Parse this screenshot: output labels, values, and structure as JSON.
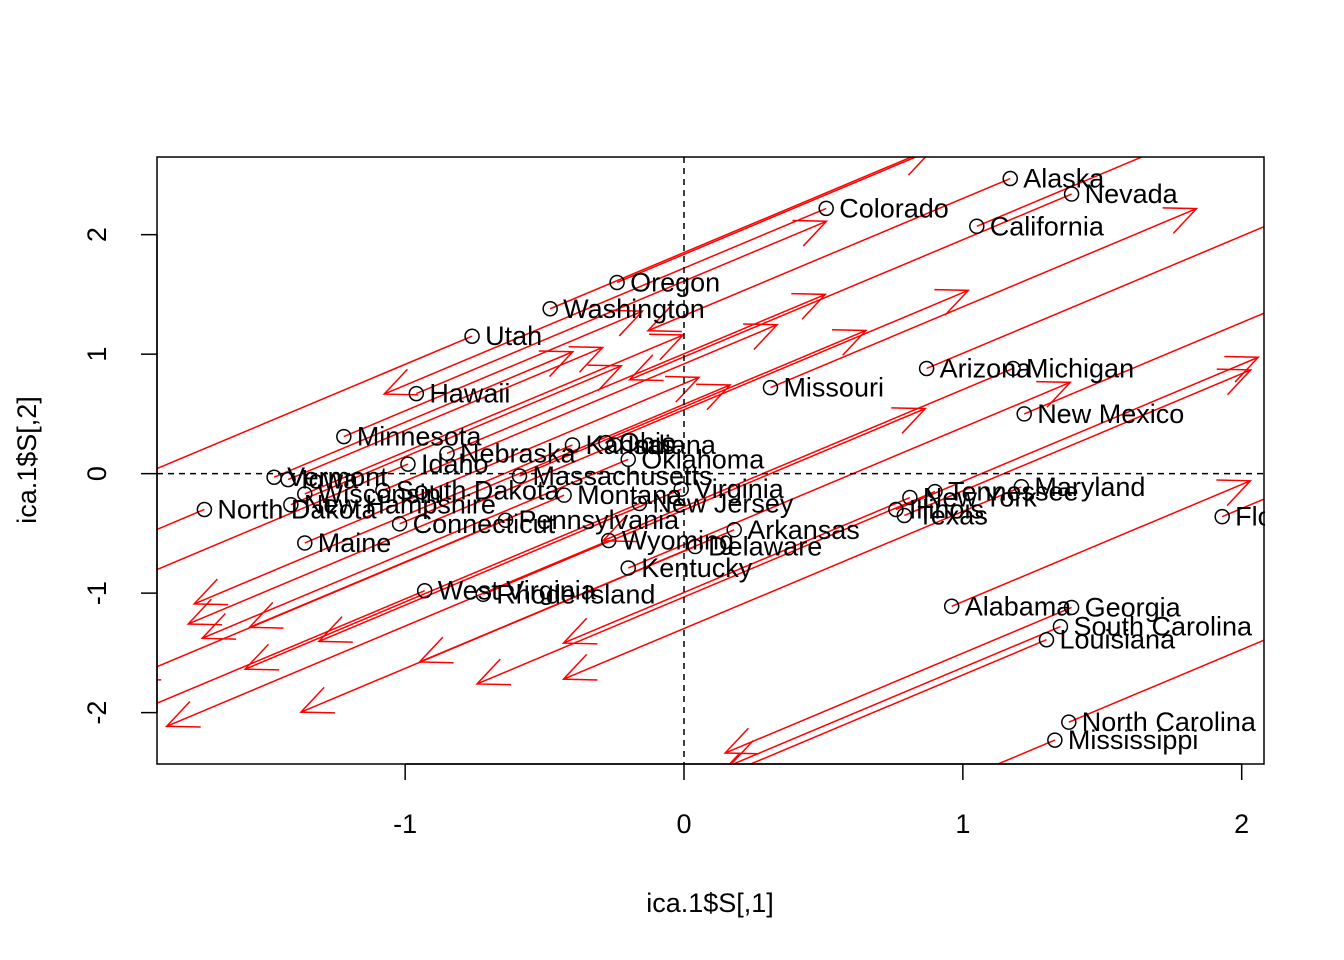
{
  "chart_data": {
    "type": "scatter",
    "title": "",
    "xlabel": "ica.1$S[,1]",
    "ylabel": "ica.1$S[,2]",
    "xlim": [
      -1.89,
      2.08
    ],
    "ylim": [
      -2.43,
      2.65
    ],
    "xticks": [
      -1,
      0,
      1,
      2
    ],
    "yticks": [
      -2,
      -1,
      0,
      1,
      2
    ],
    "reference_lines": {
      "x": 0,
      "y": 0,
      "style": "dashed"
    },
    "grid": false,
    "legend": "none",
    "point_color": "#000000",
    "arrow_color": "#ff0000",
    "points": [
      {
        "label": "Alabama",
        "x": 0.96,
        "y": -1.11
      },
      {
        "label": "Alaska",
        "x": 1.17,
        "y": 2.47
      },
      {
        "label": "Arizona",
        "x": 0.87,
        "y": 0.88
      },
      {
        "label": "Arkansas",
        "x": 0.18,
        "y": -0.47
      },
      {
        "label": "California",
        "x": 1.05,
        "y": 2.07
      },
      {
        "label": "Colorado",
        "x": 0.51,
        "y": 2.22
      },
      {
        "label": "Connecticut",
        "x": -1.02,
        "y": -0.42
      },
      {
        "label": "Delaware",
        "x": 0.04,
        "y": -0.61
      },
      {
        "label": "Florida",
        "x": 1.93,
        "y": -0.36
      },
      {
        "label": "Georgia",
        "x": 1.39,
        "y": -1.12
      },
      {
        "label": "Hawaii",
        "x": -0.96,
        "y": 0.67
      },
      {
        "label": "Idaho",
        "x": -0.99,
        "y": 0.08
      },
      {
        "label": "Illinois",
        "x": 0.76,
        "y": -0.3
      },
      {
        "label": "Indiana",
        "x": -0.25,
        "y": 0.24
      },
      {
        "label": "Iowa",
        "x": -1.42,
        "y": -0.05
      },
      {
        "label": "Kansas",
        "x": -0.4,
        "y": 0.24
      },
      {
        "label": "Kentucky",
        "x": -0.2,
        "y": -0.79
      },
      {
        "label": "Louisiana",
        "x": 1.3,
        "y": -1.39
      },
      {
        "label": "Maine",
        "x": -1.36,
        "y": -0.58
      },
      {
        "label": "Maryland",
        "x": 1.21,
        "y": -0.11
      },
      {
        "label": "Massachusetts",
        "x": -0.59,
        "y": -0.02
      },
      {
        "label": "Michigan",
        "x": 1.18,
        "y": 0.88
      },
      {
        "label": "Minnesota",
        "x": -1.22,
        "y": 0.31
      },
      {
        "label": "Mississippi",
        "x": 1.33,
        "y": -2.23
      },
      {
        "label": "Missouri",
        "x": 0.31,
        "y": 0.72
      },
      {
        "label": "Montana",
        "x": -0.43,
        "y": -0.18
      },
      {
        "label": "Nebraska",
        "x": -0.85,
        "y": 0.17
      },
      {
        "label": "Nevada",
        "x": 1.39,
        "y": 2.34
      },
      {
        "label": "New Hampshire",
        "x": -1.41,
        "y": -0.26
      },
      {
        "label": "New Jersey",
        "x": -0.16,
        "y": -0.25
      },
      {
        "label": "New Mexico",
        "x": 1.22,
        "y": 0.5
      },
      {
        "label": "New York",
        "x": 0.81,
        "y": -0.2
      },
      {
        "label": "North Carolina",
        "x": 1.38,
        "y": -2.08
      },
      {
        "label": "North Dakota",
        "x": -1.72,
        "y": -0.3
      },
      {
        "label": "Ohio",
        "x": -0.28,
        "y": 0.26
      },
      {
        "label": "Oklahoma",
        "x": -0.2,
        "y": 0.12
      },
      {
        "label": "Oregon",
        "x": -0.24,
        "y": 1.6
      },
      {
        "label": "Pennsylvania",
        "x": -0.64,
        "y": -0.39
      },
      {
        "label": "Rhode Island",
        "x": -0.72,
        "y": -1.01
      },
      {
        "label": "South Carolina",
        "x": 1.35,
        "y": -1.28
      },
      {
        "label": "South Dakota",
        "x": -1.08,
        "y": -0.14
      },
      {
        "label": "Tennessee",
        "x": 0.9,
        "y": -0.15
      },
      {
        "label": "Texas",
        "x": 0.79,
        "y": -0.35
      },
      {
        "label": "Utah",
        "x": -0.76,
        "y": 1.15
      },
      {
        "label": "Vermont",
        "x": -1.47,
        "y": -0.03
      },
      {
        "label": "Virginia",
        "x": -0.01,
        "y": -0.13
      },
      {
        "label": "Washington",
        "x": -0.48,
        "y": 1.38
      },
      {
        "label": "West Virginia",
        "x": -0.93,
        "y": -0.98
      },
      {
        "label": "Wisconsin",
        "x": -1.36,
        "y": -0.17
      },
      {
        "label": "Wyoming",
        "x": -0.27,
        "y": -0.56
      }
    ]
  }
}
